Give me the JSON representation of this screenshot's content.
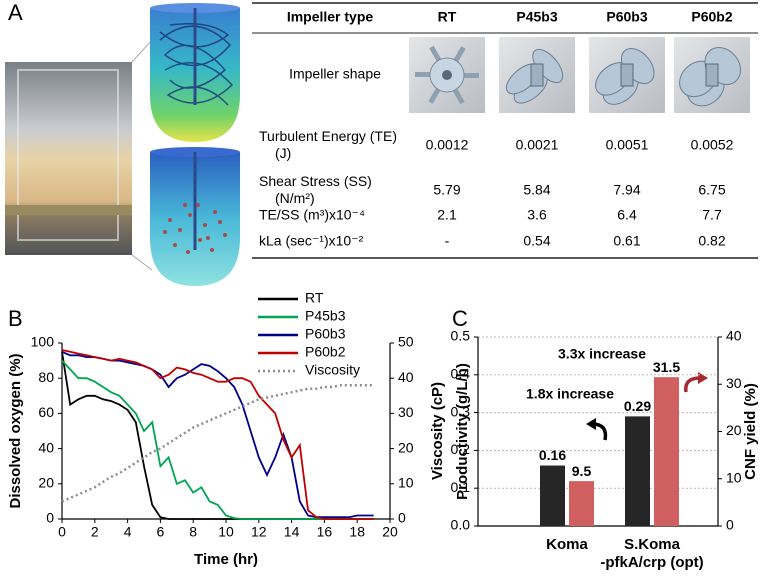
{
  "panel_labels": [
    "A",
    "B",
    "C"
  ],
  "table": {
    "header": [
      "Impeller type",
      "RT",
      "P45b3",
      "P60b3",
      "P60b2"
    ],
    "rows": [
      [
        "Impeller shape"
      ],
      [
        "Turbulent Energy (TE)\n(J)",
        "0.0012",
        "0.0021",
        "0.0051",
        "0.0052"
      ],
      [
        "Shear Stress (SS)\n(N/m²)",
        "5.79",
        "5.84",
        "7.94",
        "6.75"
      ],
      [
        "TE/SS (m³)x10⁻⁴",
        "2.1",
        "3.6",
        "6.4",
        "7.7"
      ],
      [
        "kLa (sec⁻¹)x10⁻²",
        "-",
        "0.54",
        "0.61",
        "0.82"
      ]
    ]
  },
  "chart_data": [
    {
      "type": "line",
      "xlabel": "Time (hr)",
      "ylabel": "Dissolved oxygen (%)",
      "y2label": "Viscosity (cP)",
      "x": [
        0,
        0.5,
        1,
        1.5,
        2,
        2.5,
        3,
        3.5,
        4,
        4.5,
        5,
        5.5,
        6,
        6.5,
        7,
        7.5,
        8,
        8.5,
        9,
        9.5,
        10,
        10.5,
        11,
        11.5,
        12,
        12.5,
        13,
        13.5,
        14,
        14.5,
        15,
        15.5,
        16,
        16.5,
        17,
        17.5,
        18,
        18.5,
        19
      ],
      "xlim": [
        0,
        20
      ],
      "xticks": [
        0,
        2,
        4,
        6,
        8,
        10,
        12,
        14,
        16,
        18,
        20
      ],
      "ylim": [
        0,
        100
      ],
      "yticks": [
        0,
        20,
        40,
        60,
        80,
        100
      ],
      "y2lim": [
        0,
        50
      ],
      "y2ticks": [
        0,
        10,
        20,
        30,
        40,
        50
      ],
      "legend": "upper right",
      "series": [
        {
          "name": "RT",
          "color": "#000000",
          "values": [
            95,
            65,
            68,
            70,
            70,
            68,
            67,
            65,
            62,
            55,
            30,
            8,
            1,
            0,
            0,
            0,
            0,
            0,
            0,
            0,
            0,
            0,
            0,
            0,
            0,
            0,
            0,
            0,
            0,
            0,
            0,
            0,
            0,
            0,
            0,
            0,
            0,
            0,
            0
          ]
        },
        {
          "name": "P45b3",
          "color": "#00a651",
          "values": [
            90,
            85,
            80,
            80,
            78,
            75,
            72,
            70,
            65,
            60,
            50,
            55,
            30,
            35,
            20,
            22,
            15,
            18,
            10,
            8,
            2,
            0.5,
            0,
            0,
            0,
            0,
            0,
            0,
            0,
            0,
            0,
            0,
            0,
            0,
            0,
            0,
            0,
            0,
            0
          ]
        },
        {
          "name": "P60b3",
          "color": "#00008b",
          "values": [
            95,
            93,
            93,
            92,
            92,
            91,
            90,
            90,
            89,
            88,
            87,
            85,
            82,
            75,
            80,
            82,
            85,
            88,
            87,
            84,
            80,
            75,
            65,
            50,
            35,
            25,
            35,
            48,
            35,
            10,
            2,
            1,
            1,
            1,
            1,
            1,
            2,
            2,
            2
          ]
        },
        {
          "name": "P60b2",
          "color": "#c00000",
          "values": [
            96,
            95,
            94,
            93,
            92,
            91,
            90,
            91,
            90,
            89,
            87,
            85,
            80,
            82,
            86,
            85,
            83,
            82,
            80,
            78,
            78,
            80,
            80,
            78,
            70,
            65,
            60,
            45,
            35,
            42,
            5,
            1,
            0,
            0,
            0,
            0,
            0,
            0,
            0
          ]
        },
        {
          "name": "Viscosity",
          "color": "#8c8c8c",
          "line_style": "dotted",
          "axis": "y2",
          "values": [
            5,
            6,
            7,
            8,
            9,
            10.5,
            12,
            13,
            14.5,
            16,
            17.5,
            19,
            20,
            21.5,
            23,
            24.5,
            26,
            27,
            28,
            29,
            30,
            31,
            32,
            33,
            34,
            34.5,
            35,
            35.5,
            36,
            36.5,
            37,
            37,
            37.5,
            37.5,
            38,
            38,
            38,
            38,
            38
          ]
        }
      ]
    },
    {
      "type": "bar",
      "ylabel": "Productivity (g/L/h)",
      "y2label": "CNF yield (%)",
      "y2_color": "#a5282c",
      "categories": [
        "Koma",
        "S.Koma\n-pfkA/crp (opt)"
      ],
      "ylim": [
        0,
        0.5
      ],
      "yticks": [
        {
          "value": 0,
          "label": "0.0"
        },
        0.1,
        0.2,
        0.3,
        0.4,
        0.5
      ],
      "y2lim": [
        0,
        40
      ],
      "y2ticks": [
        0,
        10,
        20,
        30,
        40
      ],
      "grid": true,
      "series": [
        {
          "color": "#262626",
          "label_color": "#000000",
          "values": [
            0.16,
            0.29
          ]
        },
        {
          "color": "#d06060",
          "label_color": "#a5282c",
          "axis": "y2",
          "values": [
            9.5,
            31.5
          ]
        }
      ],
      "annotations": [
        {
          "text": "1.8x increase",
          "color": "#000000"
        },
        {
          "text": "3.3x increase",
          "color": "#a5282c"
        }
      ]
    }
  ]
}
